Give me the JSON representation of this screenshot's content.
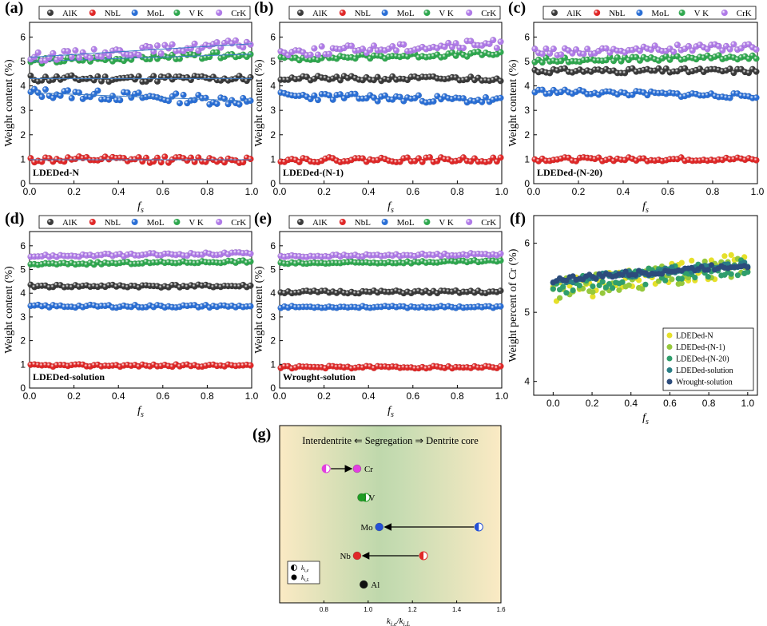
{
  "figure": {
    "legend_series": [
      "AlK",
      "NbL",
      "MoL",
      "V K",
      "CrK"
    ],
    "colors": {
      "Al": "#3a3a3a",
      "Nb": "#e02828",
      "Mo": "#2a6fd6",
      "V": "#2fa84f",
      "Cr": "#b07be8"
    }
  },
  "chart_data": [
    {
      "panel": "(a)",
      "type": "scatter",
      "annotation": "LDEDed-N",
      "xlabel": "f_s",
      "ylabel": "Weight content (%)",
      "xlim": [
        0,
        1.0
      ],
      "ylim": [
        0,
        6.6
      ],
      "xticks": [
        "0.0",
        "0.2",
        "0.4",
        "0.6",
        "0.8",
        "1.0"
      ],
      "yticks": [
        "0",
        "1",
        "2",
        "3",
        "4",
        "5",
        "6"
      ],
      "series": [
        {
          "name": "AlK",
          "mean": 4.3,
          "spread": 0.14,
          "seed": 11
        },
        {
          "name": "NbL",
          "mean": 0.98,
          "spread": 0.13,
          "seed": 12
        },
        {
          "name": "MoL",
          "mean": 3.55,
          "spread": 0.2,
          "seed": 13,
          "slope": -0.35
        },
        {
          "name": "V K",
          "mean": 5.15,
          "spread": 0.12,
          "seed": 14,
          "slope": 0.3
        },
        {
          "name": "CrK",
          "mean": 5.45,
          "spread": 0.18,
          "seed": 15,
          "slope": 0.55
        }
      ],
      "fit_lines": true
    },
    {
      "panel": "(b)",
      "type": "scatter",
      "annotation": "LDEDed-(N-1)",
      "xlabel": "f_s",
      "ylabel": "Weight content (%)",
      "xlim": [
        0,
        1.0
      ],
      "ylim": [
        0,
        6.6
      ],
      "xticks": [
        "0.0",
        "0.2",
        "0.4",
        "0.6",
        "0.8",
        "1.0"
      ],
      "yticks": [
        "0",
        "1",
        "2",
        "3",
        "4",
        "5",
        "6"
      ],
      "series": [
        {
          "name": "AlK",
          "mean": 4.3,
          "spread": 0.1,
          "seed": 21
        },
        {
          "name": "NbL",
          "mean": 0.98,
          "spread": 0.1,
          "seed": 22
        },
        {
          "name": "MoL",
          "mean": 3.5,
          "spread": 0.15,
          "seed": 23,
          "slope": -0.2
        },
        {
          "name": "V K",
          "mean": 5.22,
          "spread": 0.1,
          "seed": 24,
          "slope": 0.2
        },
        {
          "name": "CrK",
          "mean": 5.55,
          "spread": 0.18,
          "seed": 25,
          "slope": 0.35
        }
      ]
    },
    {
      "panel": "(c)",
      "type": "scatter",
      "annotation": "LDEDed-(N-20)",
      "xlabel": "f_s",
      "ylabel": "Weight content (%)",
      "xlim": [
        0,
        1.0
      ],
      "ylim": [
        0,
        6.6
      ],
      "xticks": [
        "0.0",
        "0.2",
        "0.4",
        "0.6",
        "0.8",
        "1.0"
      ],
      "yticks": [
        "0",
        "1",
        "2",
        "3",
        "4",
        "5",
        "6"
      ],
      "series": [
        {
          "name": "AlK",
          "mean": 4.62,
          "spread": 0.1,
          "seed": 31
        },
        {
          "name": "NbL",
          "mean": 1.0,
          "spread": 0.08,
          "seed": 32
        },
        {
          "name": "MoL",
          "mean": 3.68,
          "spread": 0.1,
          "seed": 33,
          "slope": -0.2
        },
        {
          "name": "V K",
          "mean": 5.12,
          "spread": 0.1,
          "seed": 34,
          "slope": 0.15
        },
        {
          "name": "CrK",
          "mean": 5.5,
          "spread": 0.15,
          "seed": 35,
          "slope": 0.25
        }
      ]
    },
    {
      "panel": "(d)",
      "type": "scatter",
      "annotation": "LDEDed-solution",
      "xlabel": "f_s",
      "ylabel": "Weight content (%)",
      "xlim": [
        0,
        1.0
      ],
      "ylim": [
        0,
        6.6
      ],
      "xticks": [
        "0.0",
        "0.2",
        "0.4",
        "0.6",
        "0.8",
        "1.0"
      ],
      "yticks": [
        "0",
        "1",
        "2",
        "3",
        "4",
        "5",
        "6"
      ],
      "series": [
        {
          "name": "AlK",
          "mean": 4.3,
          "spread": 0.06,
          "seed": 41
        },
        {
          "name": "NbL",
          "mean": 0.95,
          "spread": 0.05,
          "seed": 42
        },
        {
          "name": "MoL",
          "mean": 3.45,
          "spread": 0.06,
          "seed": 43
        },
        {
          "name": "V K",
          "mean": 5.28,
          "spread": 0.05,
          "seed": 44,
          "slope": 0.12
        },
        {
          "name": "CrK",
          "mean": 5.62,
          "spread": 0.06,
          "seed": 45,
          "slope": 0.12
        }
      ]
    },
    {
      "panel": "(e)",
      "type": "scatter",
      "annotation": "Wrought-solution",
      "xlabel": "f_s",
      "ylabel": "Weight content (%)",
      "xlim": [
        0,
        1.0
      ],
      "ylim": [
        0,
        6.6
      ],
      "xticks": [
        "0.0",
        "0.2",
        "0.4",
        "0.6",
        "0.8",
        "1.0"
      ],
      "yticks": [
        "0",
        "1",
        "2",
        "3",
        "4",
        "5",
        "6"
      ],
      "series": [
        {
          "name": "AlK",
          "mean": 4.05,
          "spread": 0.06,
          "seed": 51
        },
        {
          "name": "NbL",
          "mean": 0.88,
          "spread": 0.05,
          "seed": 52
        },
        {
          "name": "MoL",
          "mean": 3.42,
          "spread": 0.04,
          "seed": 53
        },
        {
          "name": "V K",
          "mean": 5.3,
          "spread": 0.05,
          "seed": 54,
          "slope": 0.1
        },
        {
          "name": "CrK",
          "mean": 5.6,
          "spread": 0.05,
          "seed": 55,
          "slope": 0.1
        }
      ]
    },
    {
      "panel": "(f)",
      "type": "scatter",
      "xlabel": "f_s",
      "ylabel": "Weight percent of Cr (%)",
      "xlim": [
        -0.1,
        1.05
      ],
      "ylim": [
        3.8,
        6.4
      ],
      "xticks": [
        "0.0",
        "0.2",
        "0.4",
        "0.6",
        "0.8",
        "1.0"
      ],
      "yticks": [
        "4",
        "5",
        "6"
      ],
      "legend_position": "bottom-right",
      "series": [
        {
          "name": "LDEDed-N",
          "color": "#e6e02a",
          "mean": 5.5,
          "spread": 0.17,
          "slope": 0.4,
          "seed": 61
        },
        {
          "name": "LDEDed-(N-1)",
          "color": "#96c83c",
          "mean": 5.5,
          "spread": 0.15,
          "slope": 0.35,
          "seed": 62
        },
        {
          "name": "LDEDed-(N-20)",
          "color": "#2f9e6c",
          "mean": 5.52,
          "spread": 0.12,
          "slope": 0.3,
          "seed": 63
        },
        {
          "name": "LDEDed-solution",
          "color": "#2a7f86",
          "mean": 5.58,
          "spread": 0.05,
          "slope": 0.25,
          "seed": 64
        },
        {
          "name": "Wrought-solution",
          "color": "#2c4c7c",
          "mean": 5.58,
          "spread": 0.04,
          "slope": 0.22,
          "seed": 65
        }
      ]
    },
    {
      "panel": "(g)",
      "type": "scatter",
      "header": "Interdentrite ⇐ Segregation ⇒ Dentrite core",
      "xlabel": "k_{i,e}/k_{i,L}",
      "xlim": [
        0.6,
        1.6
      ],
      "xticks": [
        "0.8",
        "1.0",
        "1.2",
        "1.4",
        "1.6"
      ],
      "legend": [
        "k_{i,e}",
        "k_{i,L}"
      ],
      "elements": [
        {
          "name": "Cr",
          "k_e": 0.81,
          "k_L": 0.95
        },
        {
          "name": "V",
          "k_e": 0.99,
          "k_L": 0.97
        },
        {
          "name": "Mo",
          "k_e": 1.5,
          "k_L": 1.05
        },
        {
          "name": "Nb",
          "k_e": 1.25,
          "k_L": 0.95
        },
        {
          "name": "Al",
          "k_e": null,
          "k_L": 0.98
        }
      ]
    }
  ]
}
